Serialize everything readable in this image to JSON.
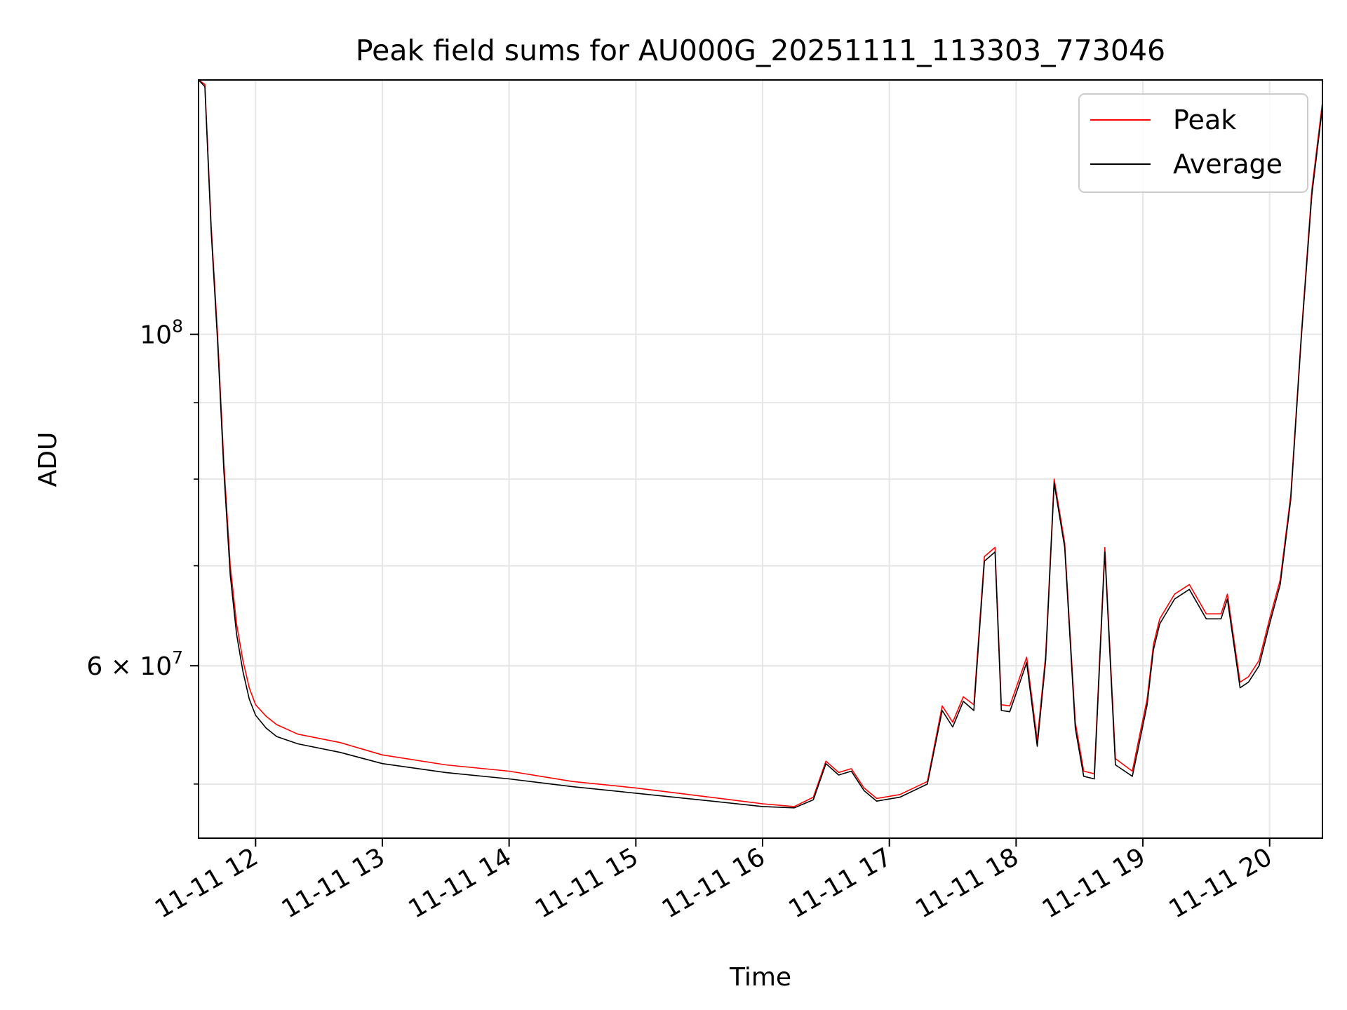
{
  "chart_data": {
    "type": "line",
    "title": "Peak field sums for AU000G_20251111_113303_773046",
    "xlabel": "Time",
    "ylabel": "ADU",
    "yscale": "log",
    "grid": true,
    "legend_position": "top-right",
    "x_ticks": [
      "11-11 12",
      "11-11 13",
      "11-11 14",
      "11-11 15",
      "11-11 16",
      "11-11 17",
      "11-11 18",
      "11-11 19",
      "11-11 20"
    ],
    "x_tick_hours": [
      12,
      13,
      14,
      15,
      16,
      17,
      18,
      19,
      20
    ],
    "y_major_ticks": [
      {
        "value": 60000000,
        "base": "6 × 10",
        "exp": "7"
      },
      {
        "value": 100000000,
        "base": "10",
        "exp": "8"
      }
    ],
    "y_minor_ticks": [
      50000000,
      60000000,
      70000000,
      80000000,
      90000000
    ],
    "xlim": [
      "2025-11-11 11:33",
      "2025-11-11 20:25"
    ],
    "ylim": [
      46000000,
      148000000
    ],
    "series": [
      {
        "name": "Peak",
        "color": "#ff0000",
        "x": [
          "2025-11-11 11:33",
          "2025-11-11 11:36",
          "2025-11-11 11:39",
          "2025-11-11 11:42",
          "2025-11-11 11:45",
          "2025-11-11 11:48",
          "2025-11-11 11:51",
          "2025-11-11 11:54",
          "2025-11-11 11:57",
          "2025-11-11 12:00",
          "2025-11-11 12:05",
          "2025-11-11 12:10",
          "2025-11-11 12:20",
          "2025-11-11 12:40",
          "2025-11-11 13:00",
          "2025-11-11 13:30",
          "2025-11-11 14:00",
          "2025-11-11 14:30",
          "2025-11-11 15:00",
          "2025-11-11 15:30",
          "2025-11-11 16:00",
          "2025-11-11 16:15",
          "2025-11-11 16:24",
          "2025-11-11 16:30",
          "2025-11-11 16:36",
          "2025-11-11 16:42",
          "2025-11-11 16:48",
          "2025-11-11 16:54",
          "2025-11-11 17:05",
          "2025-11-11 17:18",
          "2025-11-11 17:25",
          "2025-11-11 17:30",
          "2025-11-11 17:35",
          "2025-11-11 17:40",
          "2025-11-11 17:45",
          "2025-11-11 17:50",
          "2025-11-11 17:53",
          "2025-11-11 17:57",
          "2025-11-11 18:00",
          "2025-11-11 18:05",
          "2025-11-11 18:10",
          "2025-11-11 18:14",
          "2025-11-11 18:18",
          "2025-11-11 18:23",
          "2025-11-11 18:28",
          "2025-11-11 18:32",
          "2025-11-11 18:37",
          "2025-11-11 18:42",
          "2025-11-11 18:47",
          "2025-11-11 18:55",
          "2025-11-11 18:58",
          "2025-11-11 19:02",
          "2025-11-11 19:05",
          "2025-11-11 19:08",
          "2025-11-11 19:15",
          "2025-11-11 19:22",
          "2025-11-11 19:30",
          "2025-11-11 19:37",
          "2025-11-11 19:40",
          "2025-11-11 19:46",
          "2025-11-11 19:50",
          "2025-11-11 19:55",
          "2025-11-11 20:00",
          "2025-11-11 20:05",
          "2025-11-11 20:10",
          "2025-11-11 20:15",
          "2025-11-11 20:20",
          "2025-11-11 20:25"
        ],
        "values": [
          148000000,
          147000000,
          118000000,
          100000000,
          82000000,
          70000000,
          64000000,
          60500000,
          58000000,
          56500000,
          55500000,
          54800000,
          54000000,
          53300000,
          52300000,
          51500000,
          51000000,
          50200000,
          49700000,
          49100000,
          48500000,
          48300000,
          49000000,
          51800000,
          50900000,
          51200000,
          49700000,
          48900000,
          49200000,
          50200000,
          56400000,
          55000000,
          57200000,
          56500000,
          71000000,
          72000000,
          56500000,
          56400000,
          58000000,
          60800000,
          53500000,
          61000000,
          80000000,
          72500000,
          55000000,
          51000000,
          50800000,
          72000000,
          52000000,
          51000000,
          53500000,
          57000000,
          62000000,
          64500000,
          67000000,
          68000000,
          65000000,
          65000000,
          67000000,
          58500000,
          59000000,
          60500000,
          64500000,
          68500000,
          78000000,
          100000000,
          125000000,
          143000000
        ]
      },
      {
        "name": "Average",
        "color": "#000000",
        "x": [
          "2025-11-11 11:33",
          "2025-11-11 11:36",
          "2025-11-11 11:39",
          "2025-11-11 11:42",
          "2025-11-11 11:45",
          "2025-11-11 11:48",
          "2025-11-11 11:51",
          "2025-11-11 11:54",
          "2025-11-11 11:57",
          "2025-11-11 12:00",
          "2025-11-11 12:05",
          "2025-11-11 12:10",
          "2025-11-11 12:20",
          "2025-11-11 12:40",
          "2025-11-11 13:00",
          "2025-11-11 13:30",
          "2025-11-11 14:00",
          "2025-11-11 14:30",
          "2025-11-11 15:00",
          "2025-11-11 15:30",
          "2025-11-11 16:00",
          "2025-11-11 16:15",
          "2025-11-11 16:24",
          "2025-11-11 16:30",
          "2025-11-11 16:36",
          "2025-11-11 16:42",
          "2025-11-11 16:48",
          "2025-11-11 16:54",
          "2025-11-11 17:05",
          "2025-11-11 17:18",
          "2025-11-11 17:25",
          "2025-11-11 17:30",
          "2025-11-11 17:35",
          "2025-11-11 17:40",
          "2025-11-11 17:45",
          "2025-11-11 17:50",
          "2025-11-11 17:53",
          "2025-11-11 17:57",
          "2025-11-11 18:00",
          "2025-11-11 18:05",
          "2025-11-11 18:10",
          "2025-11-11 18:14",
          "2025-11-11 18:18",
          "2025-11-11 18:23",
          "2025-11-11 18:28",
          "2025-11-11 18:32",
          "2025-11-11 18:37",
          "2025-11-11 18:42",
          "2025-11-11 18:47",
          "2025-11-11 18:55",
          "2025-11-11 18:58",
          "2025-11-11 19:02",
          "2025-11-11 19:05",
          "2025-11-11 19:08",
          "2025-11-11 19:15",
          "2025-11-11 19:22",
          "2025-11-11 19:30",
          "2025-11-11 19:37",
          "2025-11-11 19:40",
          "2025-11-11 19:46",
          "2025-11-11 19:50",
          "2025-11-11 19:55",
          "2025-11-11 20:00",
          "2025-11-11 20:05",
          "2025-11-11 20:10",
          "2025-11-11 20:15",
          "2025-11-11 20:20",
          "2025-11-11 20:25"
        ],
        "values": [
          148000000,
          146500000,
          117000000,
          99000000,
          81000000,
          69000000,
          63000000,
          59500000,
          57000000,
          55600000,
          54500000,
          53800000,
          53200000,
          52500000,
          51600000,
          50900000,
          50400000,
          49800000,
          49300000,
          48800000,
          48300000,
          48200000,
          48800000,
          51600000,
          50700000,
          51000000,
          49500000,
          48700000,
          49000000,
          50000000,
          56000000,
          54600000,
          56800000,
          56000000,
          70500000,
          71500000,
          56000000,
          55900000,
          57500000,
          60300000,
          53000000,
          60500000,
          79500000,
          72000000,
          54500000,
          50600000,
          50400000,
          71500000,
          51500000,
          50600000,
          53000000,
          56500000,
          61500000,
          64000000,
          66500000,
          67500000,
          64500000,
          64500000,
          66500000,
          58000000,
          58500000,
          60000000,
          64000000,
          68000000,
          77500000,
          99500000,
          124000000,
          142000000
        ]
      }
    ]
  }
}
